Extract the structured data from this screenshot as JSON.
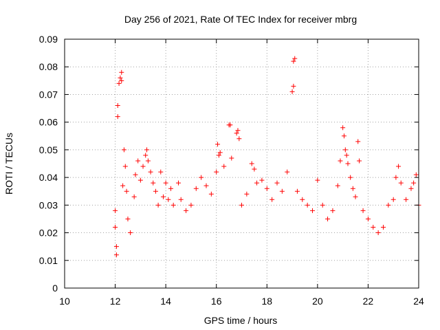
{
  "chart_data": {
    "type": "scatter",
    "title": "Day 256 of 2021, Rate Of TEC Index for receiver mbrg",
    "xlabel": "GPS time / hours",
    "ylabel": "ROTI / TECUs",
    "xlim": [
      10,
      24
    ],
    "ylim": [
      0,
      0.09
    ],
    "x_ticks": [
      "10",
      "12",
      "14",
      "16",
      "18",
      "20",
      "22",
      "24"
    ],
    "y_ticks": [
      "0",
      "0.01",
      "0.02",
      "0.03",
      "0.04",
      "0.05",
      "0.06",
      "0.07",
      "0.08",
      "0.09"
    ],
    "grid": true,
    "marker": "+",
    "marker_color": "#ff0000",
    "series": [
      {
        "points": [
          [
            12.0,
            0.022
          ],
          [
            12.0,
            0.028
          ],
          [
            12.05,
            0.015
          ],
          [
            12.05,
            0.012
          ],
          [
            12.1,
            0.062
          ],
          [
            12.1,
            0.066
          ],
          [
            12.15,
            0.074
          ],
          [
            12.2,
            0.076
          ],
          [
            12.25,
            0.078
          ],
          [
            12.25,
            0.075
          ],
          [
            12.3,
            0.037
          ],
          [
            12.35,
            0.05
          ],
          [
            12.4,
            0.044
          ],
          [
            12.45,
            0.035
          ],
          [
            12.5,
            0.025
          ],
          [
            12.6,
            0.02
          ],
          [
            12.75,
            0.033
          ],
          [
            12.8,
            0.041
          ],
          [
            12.9,
            0.046
          ],
          [
            13.0,
            0.039
          ],
          [
            13.1,
            0.044
          ],
          [
            13.2,
            0.048
          ],
          [
            13.25,
            0.05
          ],
          [
            13.3,
            0.046
          ],
          [
            13.4,
            0.042
          ],
          [
            13.5,
            0.038
          ],
          [
            13.6,
            0.035
          ],
          [
            13.7,
            0.03
          ],
          [
            13.8,
            0.042
          ],
          [
            13.9,
            0.033
          ],
          [
            14.0,
            0.038
          ],
          [
            14.1,
            0.032
          ],
          [
            14.2,
            0.036
          ],
          [
            14.3,
            0.03
          ],
          [
            14.5,
            0.038
          ],
          [
            14.6,
            0.032
          ],
          [
            14.8,
            0.028
          ],
          [
            15.0,
            0.03
          ],
          [
            15.2,
            0.036
          ],
          [
            15.4,
            0.04
          ],
          [
            15.6,
            0.037
          ],
          [
            15.8,
            0.034
          ],
          [
            16.0,
            0.042
          ],
          [
            16.05,
            0.052
          ],
          [
            16.1,
            0.048
          ],
          [
            16.15,
            0.049
          ],
          [
            16.3,
            0.044
          ],
          [
            16.5,
            0.059
          ],
          [
            16.55,
            0.059
          ],
          [
            16.6,
            0.047
          ],
          [
            16.8,
            0.056
          ],
          [
            16.85,
            0.057
          ],
          [
            16.9,
            0.054
          ],
          [
            17.0,
            0.03
          ],
          [
            17.2,
            0.034
          ],
          [
            17.4,
            0.045
          ],
          [
            17.5,
            0.043
          ],
          [
            17.6,
            0.038
          ],
          [
            17.8,
            0.039
          ],
          [
            18.0,
            0.036
          ],
          [
            18.2,
            0.032
          ],
          [
            18.4,
            0.038
          ],
          [
            18.6,
            0.035
          ],
          [
            18.8,
            0.042
          ],
          [
            19.0,
            0.071
          ],
          [
            19.05,
            0.073
          ],
          [
            19.05,
            0.082
          ],
          [
            19.1,
            0.083
          ],
          [
            19.2,
            0.035
          ],
          [
            19.4,
            0.032
          ],
          [
            19.6,
            0.03
          ],
          [
            19.8,
            0.028
          ],
          [
            20.0,
            0.039
          ],
          [
            20.2,
            0.03
          ],
          [
            20.4,
            0.025
          ],
          [
            20.6,
            0.028
          ],
          [
            20.8,
            0.037
          ],
          [
            20.9,
            0.046
          ],
          [
            21.0,
            0.058
          ],
          [
            21.05,
            0.055
          ],
          [
            21.1,
            0.05
          ],
          [
            21.15,
            0.048
          ],
          [
            21.2,
            0.045
          ],
          [
            21.3,
            0.04
          ],
          [
            21.4,
            0.036
          ],
          [
            21.5,
            0.033
          ],
          [
            21.6,
            0.053
          ],
          [
            21.65,
            0.046
          ],
          [
            21.8,
            0.028
          ],
          [
            22.0,
            0.025
          ],
          [
            22.2,
            0.022
          ],
          [
            22.4,
            0.02
          ],
          [
            22.6,
            0.022
          ],
          [
            22.8,
            0.03
          ],
          [
            23.0,
            0.032
          ],
          [
            23.1,
            0.04
          ],
          [
            23.2,
            0.044
          ],
          [
            23.3,
            0.038
          ],
          [
            23.5,
            0.032
          ],
          [
            23.7,
            0.036
          ],
          [
            23.8,
            0.038
          ],
          [
            23.9,
            0.041
          ],
          [
            24.0,
            0.03
          ]
        ]
      }
    ]
  }
}
